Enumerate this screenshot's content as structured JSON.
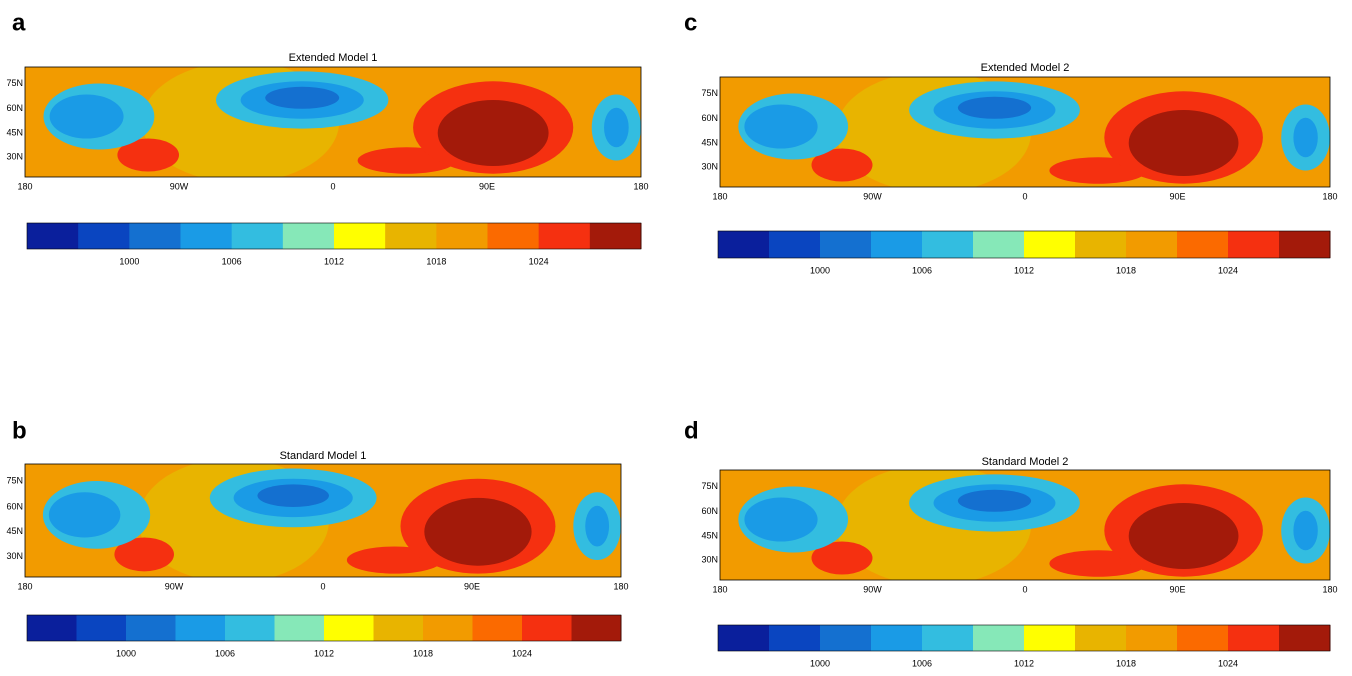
{
  "panels": [
    {
      "letter": "a",
      "title": "Extended Model 1",
      "lat_labels": [
        "75N",
        "60N",
        "45N",
        "30N"
      ],
      "lon_labels": [
        "180",
        "90W",
        "0",
        "90E",
        "180"
      ],
      "colorbar_labels": [
        "1000",
        "1006",
        "1012",
        "1018",
        "1024"
      ]
    },
    {
      "letter": "b",
      "title": "Standard Model 1",
      "lat_labels": [
        "75N",
        "60N",
        "45N",
        "30N"
      ],
      "lon_labels": [
        "180",
        "90W",
        "0",
        "90E",
        "180"
      ],
      "colorbar_labels": [
        "1000",
        "1006",
        "1012",
        "1018",
        "1024"
      ]
    },
    {
      "letter": "c",
      "title": "Extended Model 2",
      "lat_labels": [
        "75N",
        "60N",
        "45N",
        "30N"
      ],
      "lon_labels": [
        "180",
        "90W",
        "0",
        "90E",
        "180"
      ],
      "colorbar_labels": [
        "1000",
        "1006",
        "1012",
        "1018",
        "1024"
      ]
    },
    {
      "letter": "d",
      "title": "Standard Model 2",
      "lat_labels": [
        "75N",
        "60N",
        "45N",
        "30N"
      ],
      "lon_labels": [
        "180",
        "90W",
        "0",
        "90E",
        "180"
      ],
      "colorbar_labels": [
        "1000",
        "1006",
        "1012",
        "1018",
        "1024"
      ]
    }
  ],
  "colorbar_colors": [
    "#0a1f9c",
    "#0a45c0",
    "#1470d0",
    "#1a9be6",
    "#33bde0",
    "#86e8b8",
    "#ffff00",
    "#e8b400",
    "#f29b00",
    "#fb6a00",
    "#f53010",
    "#a31a0a"
  ]
}
